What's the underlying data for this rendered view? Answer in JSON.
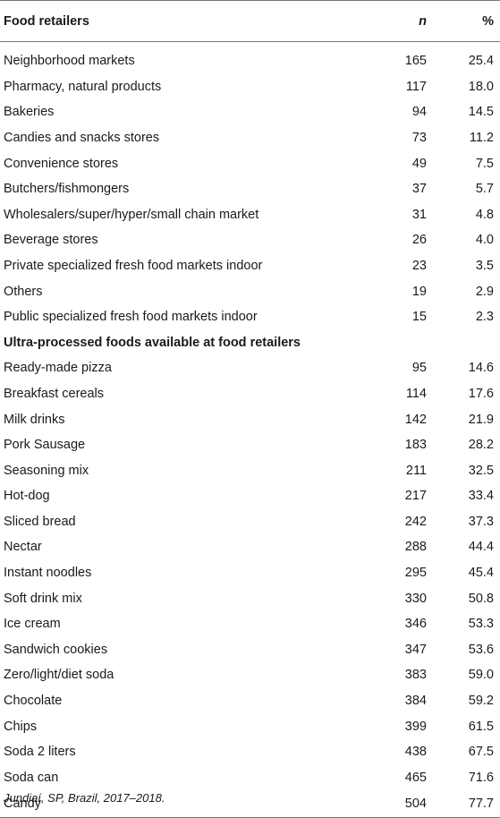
{
  "table": {
    "header": {
      "label": "Food retailers",
      "n": "n",
      "pct": "%"
    },
    "retailers": [
      {
        "label": "Neighborhood markets",
        "n": "165",
        "pct": "25.4"
      },
      {
        "label": "Pharmacy, natural products",
        "n": "117",
        "pct": "18.0"
      },
      {
        "label": "Bakeries",
        "n": "94",
        "pct": "14.5"
      },
      {
        "label": "Candies and snacks stores",
        "n": "73",
        "pct": "11.2"
      },
      {
        "label": "Convenience stores",
        "n": "49",
        "pct": "7.5"
      },
      {
        "label": "Butchers/fishmongers",
        "n": "37",
        "pct": "5.7"
      },
      {
        "label": "Wholesalers/super/hyper/small chain market",
        "n": "31",
        "pct": "4.8"
      },
      {
        "label": "Beverage stores",
        "n": "26",
        "pct": "4.0"
      },
      {
        "label": "Private specialized fresh food markets indoor",
        "n": "23",
        "pct": "3.5"
      },
      {
        "label": "Others",
        "n": "19",
        "pct": "2.9"
      },
      {
        "label": "Public specialized fresh food markets indoor",
        "n": "15",
        "pct": "2.3"
      }
    ],
    "section_title": "Ultra-processed foods available at food retailers",
    "foods": [
      {
        "label": "Ready-made pizza",
        "n": "95",
        "pct": "14.6"
      },
      {
        "label": "Breakfast cereals",
        "n": "114",
        "pct": "17.6"
      },
      {
        "label": "Milk drinks",
        "n": "142",
        "pct": "21.9"
      },
      {
        "label": "Pork Sausage",
        "n": "183",
        "pct": "28.2"
      },
      {
        "label": "Seasoning mix",
        "n": "211",
        "pct": "32.5"
      },
      {
        "label": "Hot-dog",
        "n": "217",
        "pct": "33.4"
      },
      {
        "label": "Sliced bread",
        "n": "242",
        "pct": "37.3"
      },
      {
        "label": "Nectar",
        "n": "288",
        "pct": "44.4"
      },
      {
        "label": "Instant noodles",
        "n": "295",
        "pct": "45.4"
      },
      {
        "label": "Soft drink mix",
        "n": "330",
        "pct": "50.8"
      },
      {
        "label": "Ice cream",
        "n": "346",
        "pct": "53.3"
      },
      {
        "label": "Sandwich cookies",
        "n": "347",
        "pct": "53.6"
      },
      {
        "label": "Zero/light/diet soda",
        "n": "383",
        "pct": "59.0"
      },
      {
        "label": "Chocolate",
        "n": "384",
        "pct": "59.2"
      },
      {
        "label": "Chips",
        "n": "399",
        "pct": "61.5"
      },
      {
        "label": "Soda 2 liters",
        "n": "438",
        "pct": "67.5"
      },
      {
        "label": "Soda can",
        "n": "465",
        "pct": "71.6"
      },
      {
        "label": "Candy",
        "n": "504",
        "pct": "77.7"
      }
    ]
  },
  "footnote": "Jundiaí, SP, Brazil, 2017–2018."
}
